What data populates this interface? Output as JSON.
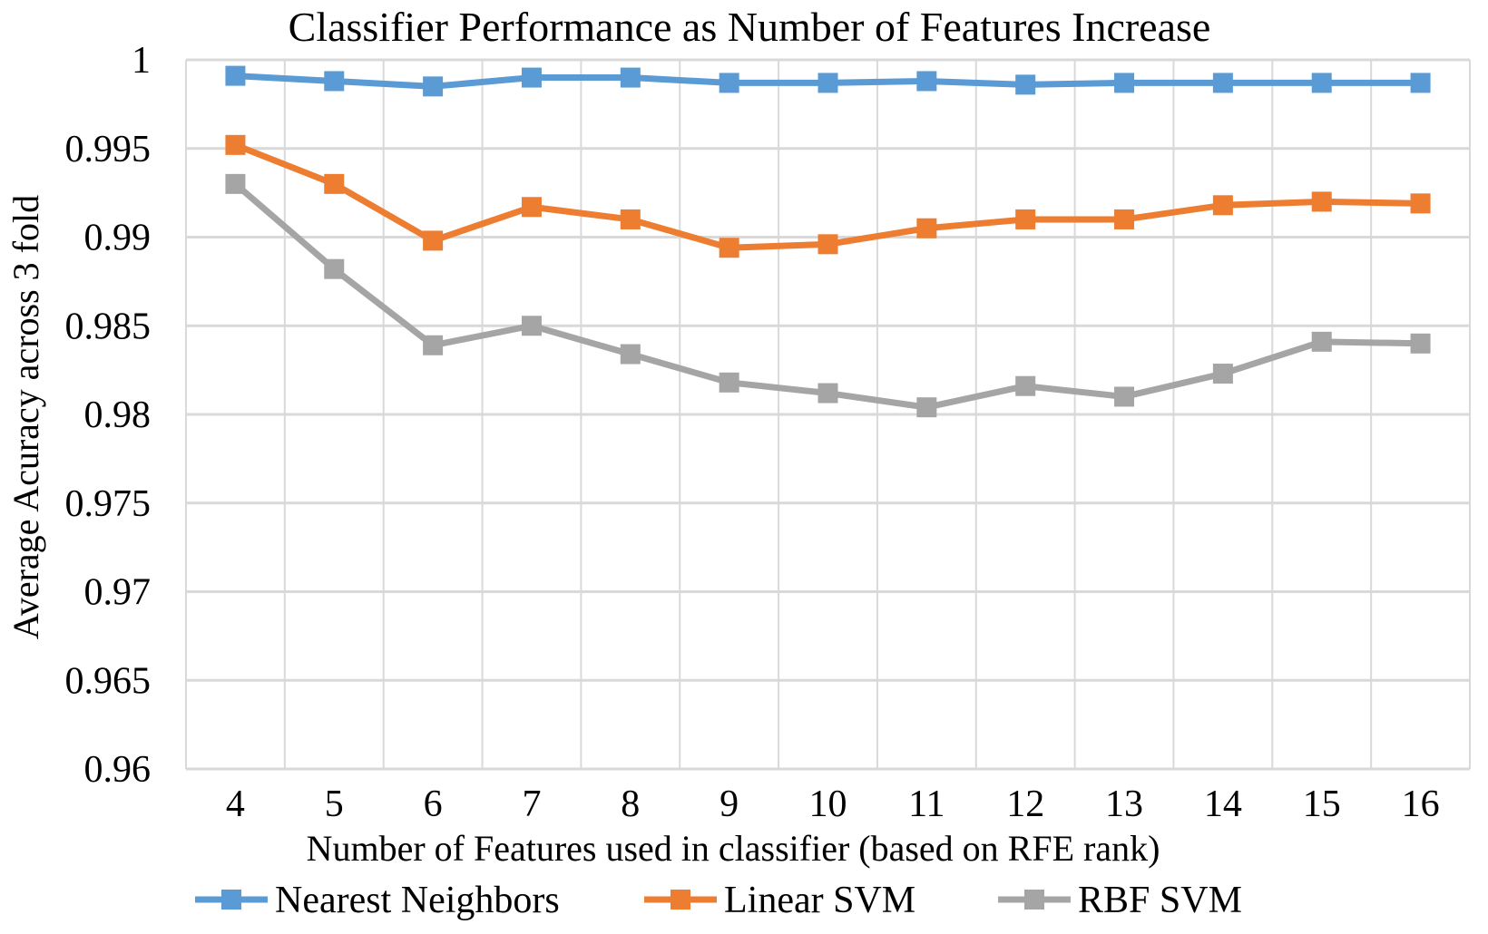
{
  "chart_data": {
    "type": "line",
    "title": "Classifier Performance as Number of Features Increase",
    "xlabel": "Number of Features used in classifier (based on RFE rank)",
    "ylabel": "Average Acuracy across 3 fold",
    "x": [
      4,
      5,
      6,
      7,
      8,
      9,
      10,
      11,
      12,
      13,
      14,
      15,
      16
    ],
    "ylim": [
      0.96,
      1
    ],
    "yticks": [
      "0.96",
      "0.965",
      "0.97",
      "0.975",
      "0.98",
      "0.985",
      "0.99",
      "0.995",
      "1"
    ],
    "grid": true,
    "legend": "bottom",
    "series": [
      {
        "name": "Nearest Neighbors",
        "color": "#5b9bd5",
        "values": [
          0.9991,
          0.9988,
          0.9985,
          0.999,
          0.999,
          0.9987,
          0.9987,
          0.9988,
          0.9986,
          0.9987,
          0.9987,
          0.9987,
          0.9987
        ]
      },
      {
        "name": "Linear SVM",
        "color": "#ed7d31",
        "values": [
          0.9952,
          0.993,
          0.9898,
          0.9917,
          0.991,
          0.9894,
          0.9896,
          0.9905,
          0.991,
          0.991,
          0.9918,
          0.992,
          0.9919
        ]
      },
      {
        "name": "RBF SVM",
        "color": "#a5a5a5",
        "values": [
          0.993,
          0.9882,
          0.9839,
          0.985,
          0.9834,
          0.9818,
          0.9812,
          0.9804,
          0.9816,
          0.981,
          0.9823,
          0.9841,
          0.984
        ]
      }
    ]
  }
}
